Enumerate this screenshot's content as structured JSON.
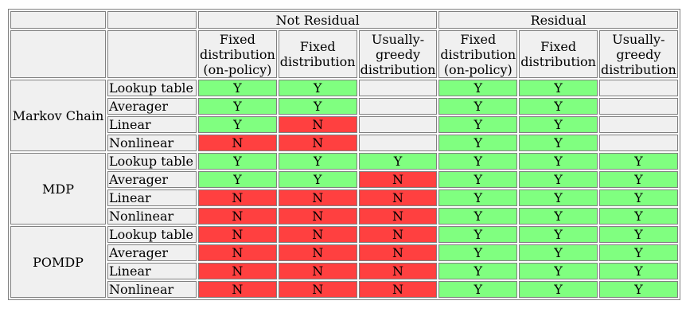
{
  "table": {
    "top_headers": [
      "Not Residual",
      "Residual"
    ],
    "sub_headers": [
      [
        "Fixed",
        "distribution",
        "(on-policy)"
      ],
      [
        "Fixed",
        "distribution"
      ],
      [
        "Usually-",
        "greedy",
        "distribution"
      ],
      [
        "Fixed",
        "distribution",
        "(on-policy)"
      ],
      [
        "Fixed",
        "distribution"
      ],
      [
        "Usually-",
        "greedy",
        "distribution"
      ]
    ],
    "groups": [
      {
        "name": "Markov Chain",
        "rows": [
          {
            "approx": "Lookup table",
            "cells": [
              "Y",
              "Y",
              "",
              "Y",
              "Y",
              ""
            ]
          },
          {
            "approx": "Averager",
            "cells": [
              "Y",
              "Y",
              "",
              "Y",
              "Y",
              ""
            ]
          },
          {
            "approx": "Linear",
            "cells": [
              "Y",
              "N",
              "",
              "Y",
              "Y",
              ""
            ]
          },
          {
            "approx": "Nonlinear",
            "cells": [
              "N",
              "N",
              "",
              "Y",
              "Y",
              ""
            ]
          }
        ]
      },
      {
        "name": "MDP",
        "rows": [
          {
            "approx": "Lookup table",
            "cells": [
              "Y",
              "Y",
              "Y",
              "Y",
              "Y",
              "Y"
            ]
          },
          {
            "approx": "Averager",
            "cells": [
              "Y",
              "Y",
              "N",
              "Y",
              "Y",
              "Y"
            ]
          },
          {
            "approx": "Linear",
            "cells": [
              "N",
              "N",
              "N",
              "Y",
              "Y",
              "Y"
            ]
          },
          {
            "approx": "Nonlinear",
            "cells": [
              "N",
              "N",
              "N",
              "Y",
              "Y",
              "Y"
            ]
          }
        ]
      },
      {
        "name": "POMDP",
        "rows": [
          {
            "approx": "Lookup table",
            "cells": [
              "N",
              "N",
              "N",
              "Y",
              "Y",
              "Y"
            ]
          },
          {
            "approx": "Averager",
            "cells": [
              "N",
              "N",
              "N",
              "Y",
              "Y",
              "Y"
            ]
          },
          {
            "approx": "Linear",
            "cells": [
              "N",
              "N",
              "N",
              "Y",
              "Y",
              "Y"
            ]
          },
          {
            "approx": "Nonlinear",
            "cells": [
              "N",
              "N",
              "N",
              "Y",
              "Y",
              "Y"
            ]
          }
        ]
      }
    ]
  },
  "colors": {
    "yes": "#80ff80",
    "no": "#ff4040",
    "empty": "#f0f0f0"
  }
}
